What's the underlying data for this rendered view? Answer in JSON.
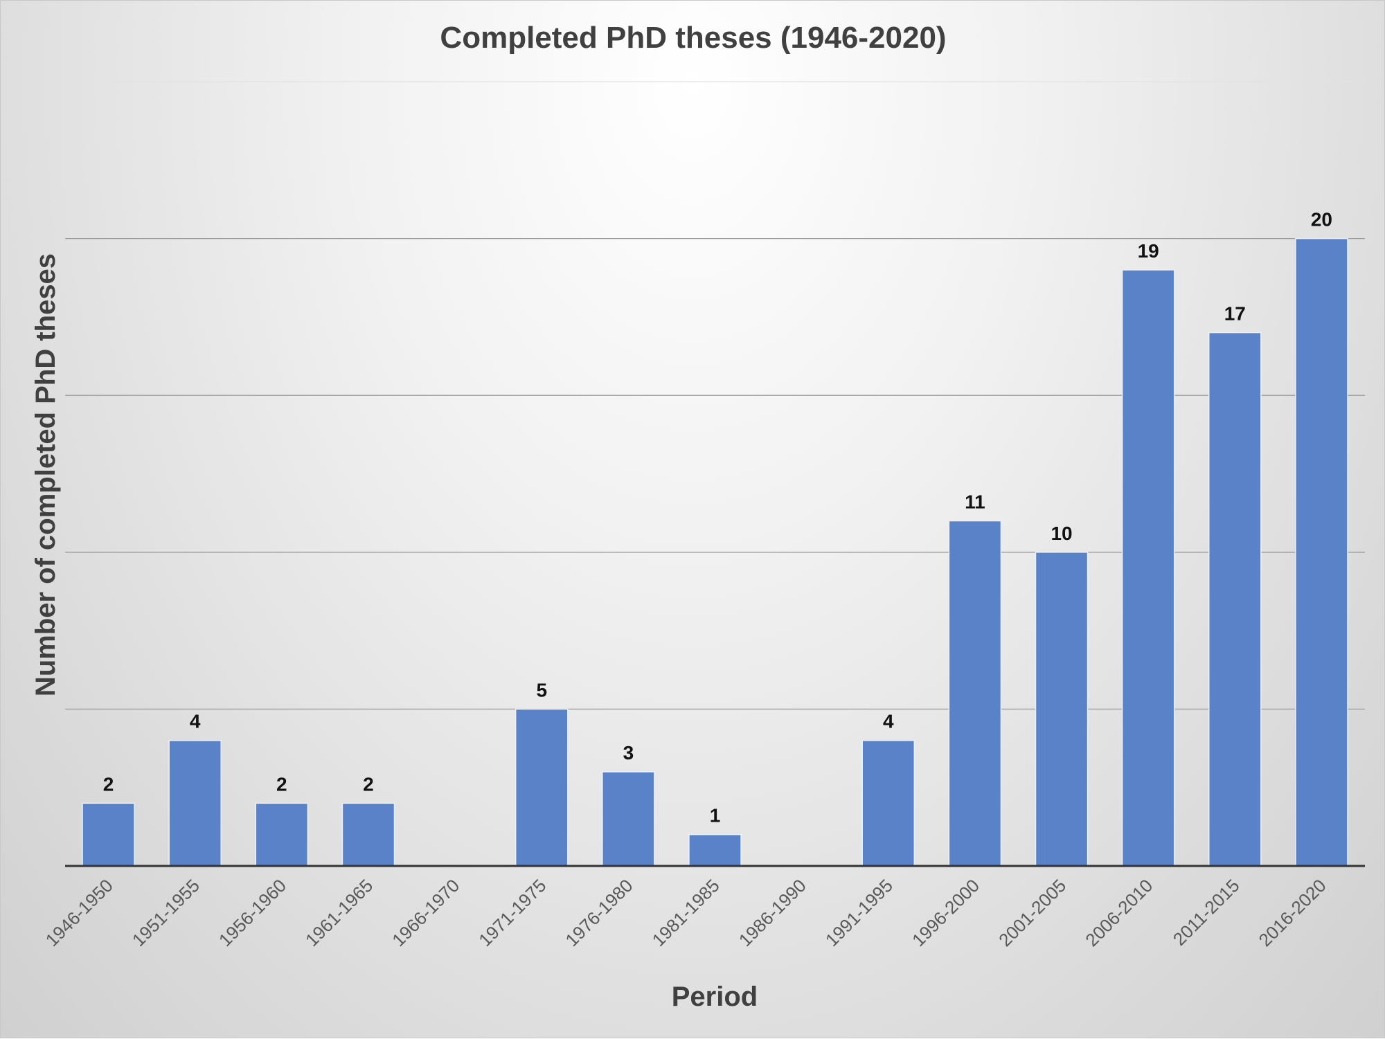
{
  "chart_data": {
    "type": "bar",
    "title": "Completed PhD theses (1946-2020)",
    "xlabel": "Period",
    "ylabel": "Number of completed PhD theses",
    "categories": [
      "1946-1950",
      "1951-1955",
      "1956-1960",
      "1961-1965",
      "1966-1970",
      "1971-1975",
      "1976-1980",
      "1981-1985",
      "1986-1990",
      "1991-1995",
      "1996-2000",
      "2001-2005",
      "2006-2010",
      "2011-2015",
      "2016-2020"
    ],
    "values": [
      2,
      4,
      2,
      2,
      null,
      5,
      3,
      1,
      null,
      4,
      11,
      10,
      19,
      17,
      20
    ],
    "ylim": [
      0,
      25
    ],
    "gridlines": [
      5,
      10,
      15,
      20,
      25
    ],
    "y_tick_labels_shown": false,
    "grid": true,
    "legend": "none",
    "bar_color": "#5a82c8"
  }
}
